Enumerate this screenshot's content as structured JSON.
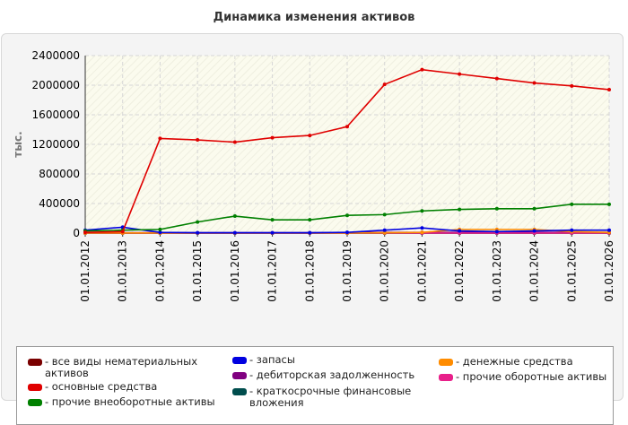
{
  "chart_data": {
    "type": "line",
    "title": "Динамика изменения активов",
    "ylabel": "тыс.",
    "xlabel": "",
    "ylim": [
      0,
      2400000
    ],
    "yticks": [
      0,
      400000,
      800000,
      1200000,
      1600000,
      2000000,
      2400000
    ],
    "grid": true,
    "legend_position": "bottom",
    "categories": [
      "01.01.2012",
      "01.01.2013",
      "01.01.2014",
      "01.01.2015",
      "01.01.2016",
      "01.01.2017",
      "01.01.2018",
      "01.01.2019",
      "01.01.2020",
      "01.01.2021",
      "01.01.2022",
      "01.01.2023",
      "01.01.2024",
      "01.01.2025",
      "01.01.2026"
    ],
    "series": [
      {
        "name": "все виды нематериальных активов",
        "color": "#7a0000",
        "values": [
          0,
          0,
          0,
          0,
          0,
          0,
          0,
          0,
          0,
          0,
          0,
          0,
          0,
          0,
          0
        ]
      },
      {
        "name": "основные средства",
        "color": "#e00000",
        "values": [
          10000,
          20000,
          1280000,
          1260000,
          1230000,
          1290000,
          1320000,
          1440000,
          2010000,
          2210000,
          2150000,
          2090000,
          2030000,
          1990000,
          1940000
        ]
      },
      {
        "name": "прочие внеоборотные активы",
        "color": "#008000",
        "values": [
          30000,
          40000,
          50000,
          150000,
          230000,
          180000,
          180000,
          240000,
          250000,
          300000,
          320000,
          330000,
          330000,
          390000,
          390000
        ]
      },
      {
        "name": "запасы",
        "color": "#0000e0",
        "values": [
          40000,
          80000,
          10000,
          5000,
          5000,
          5000,
          5000,
          10000,
          40000,
          70000,
          30000,
          20000,
          30000,
          40000,
          40000
        ]
      },
      {
        "name": "дебиторская задолженность",
        "color": "#800080",
        "values": [
          5000,
          5000,
          5000,
          5000,
          5000,
          5000,
          5000,
          5000,
          10000,
          10000,
          10000,
          10000,
          10000,
          10000,
          10000
        ]
      },
      {
        "name": "краткосрочные финансовые вложения",
        "color": "#004d4d",
        "values": [
          0,
          0,
          0,
          0,
          0,
          0,
          0,
          0,
          0,
          0,
          0,
          0,
          0,
          0,
          0
        ]
      },
      {
        "name": "денежные средства",
        "color": "#ff8c00",
        "values": [
          2000,
          2000,
          2000,
          2000,
          2000,
          2000,
          2000,
          2000,
          5000,
          10000,
          50000,
          50000,
          50000,
          20000,
          10000
        ]
      },
      {
        "name": "прочие оборотные активы",
        "color": "#e8208a",
        "values": [
          1000,
          1000,
          1000,
          1000,
          1000,
          1000,
          1000,
          1000,
          1000,
          1000,
          1000,
          1000,
          1000,
          1000,
          1000
        ]
      }
    ]
  }
}
